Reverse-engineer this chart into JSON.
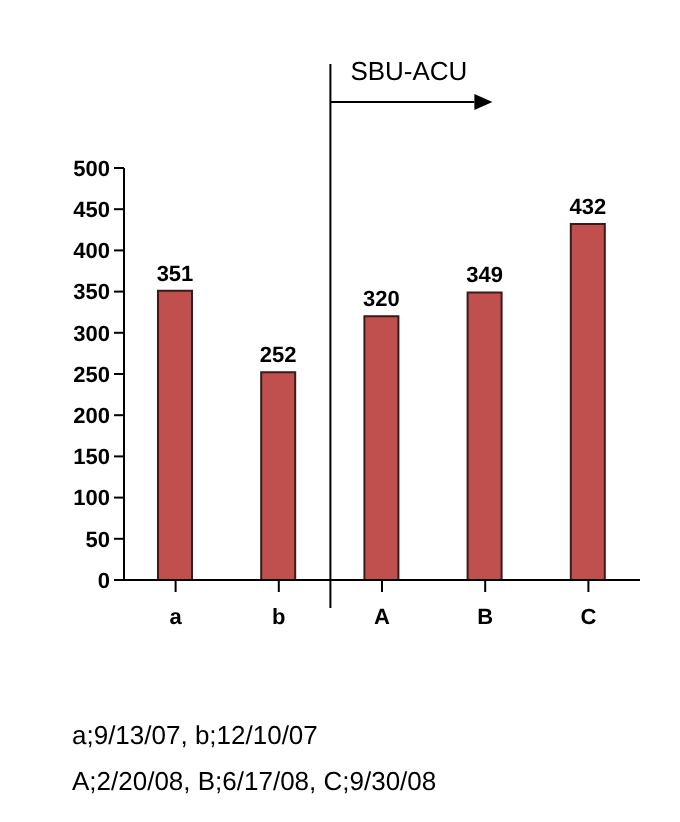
{
  "chart_data": {
    "type": "bar",
    "categories": [
      "a",
      "b",
      "A",
      "B",
      "C"
    ],
    "values": [
      351,
      252,
      320,
      349,
      432
    ],
    "color": "#c0504d",
    "ylim": [
      0,
      500
    ],
    "yticks": [
      0,
      50,
      100,
      150,
      200,
      250,
      300,
      350,
      400,
      450,
      500
    ],
    "data_labels": true,
    "annotations": [
      "SBU-ACU",
      "a;9/13/07, b;12/10/07",
      "A;2/20/08, B;6/17/08, C;9/30/08"
    ]
  }
}
